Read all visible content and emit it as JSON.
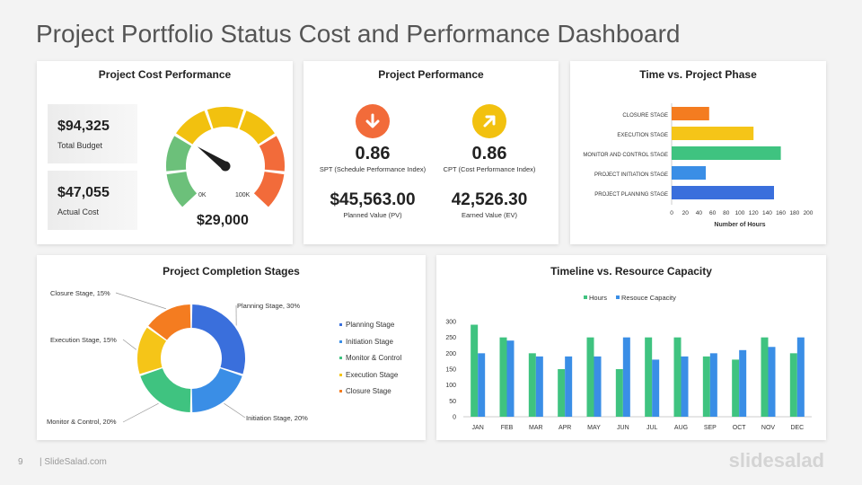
{
  "page": {
    "title": "Project Portfolio Status Cost and Performance Dashboard",
    "page_number": "9",
    "footer": "| SlideSalad.com",
    "brand": "slidesalad"
  },
  "cost_performance": {
    "title": "Project Cost Performance",
    "total_budget_value": "$94,325",
    "total_budget_label": "Total  Budget",
    "actual_cost_value": "$47,055",
    "actual_cost_label": "Actual Cost",
    "gauge_value": "$29,000",
    "gauge_min_label": "0K",
    "gauge_max_label": "100K",
    "gauge_level": 0.29,
    "gauge_colors": [
      "#6cc07a",
      "#6cc07a",
      "#f2c10f",
      "#f2c10f",
      "#f2c10f",
      "#f26b3a",
      "#f26b3a"
    ]
  },
  "project_performance": {
    "title": "Project Performance",
    "spi": {
      "value": "0.86",
      "label": "SPT (Schedule Performance Index)",
      "money": "$45,563.00",
      "money_label": "Planned Value (PV)",
      "icon": "arrow-down-icon",
      "color": "#f26b3a"
    },
    "cpi": {
      "value": "0.86",
      "label": "CPT (Cost Performance Index)",
      "money": "42,526.30",
      "money_label": "Earned Value (EV)",
      "icon": "arrow-up-right-icon",
      "color": "#f2c10f"
    }
  },
  "chart_data": [
    {
      "id": "time_vs_phase",
      "type": "bar",
      "orientation": "horizontal",
      "title": "Time vs. Project Phase",
      "xlabel": "Number of Hours",
      "xlim": [
        0,
        200
      ],
      "xticks": [
        0,
        20,
        40,
        60,
        80,
        100,
        120,
        140,
        160,
        180,
        200
      ],
      "categories": [
        "CLOSURE STAGE",
        "EXECUTION STAGE",
        "MONITOR AND CONTROL STAGE",
        "PROJECT INITIATION STAGE",
        "PROJECT PLANNING STAGE"
      ],
      "values": [
        55,
        120,
        160,
        50,
        150
      ],
      "colors": [
        "#f47c20",
        "#f5c518",
        "#3fc380",
        "#3a8ee6",
        "#3a6fdc"
      ]
    },
    {
      "id": "completion_stages",
      "type": "pie",
      "donut": true,
      "title": "Project Completion  Stages",
      "categories": [
        "Planning Stage",
        "Initiation Stage",
        "Monitor & Control",
        "Execution Stage",
        "Closure Stage"
      ],
      "values": [
        30,
        20,
        20,
        15,
        15
      ],
      "data_labels": [
        "Planning Stage, 30%",
        "Initiation Stage, 20%",
        "Monitor & Control, 20%",
        "Execution Stage, 15%",
        "Closure Stage, 15%"
      ],
      "colors": [
        "#3a6fdc",
        "#3a8ee6",
        "#3fc380",
        "#f5c518",
        "#f47c20"
      ],
      "legend_position": "right"
    },
    {
      "id": "timeline_capacity",
      "type": "bar",
      "title": "Timeline  vs. Resource Capacity",
      "categories": [
        "JAN",
        "FEB",
        "MAR",
        "APR",
        "MAY",
        "JUN",
        "JUL",
        "AUG",
        "SEP",
        "OCT",
        "NOV",
        "DEC"
      ],
      "series": [
        {
          "name": "Hours",
          "values": [
            290,
            250,
            200,
            150,
            250,
            150,
            250,
            250,
            190,
            180,
            250,
            200
          ],
          "color": "#3fc380"
        },
        {
          "name": "Resouce Capacity",
          "values": [
            200,
            240,
            190,
            190,
            190,
            250,
            180,
            190,
            200,
            210,
            220,
            250
          ],
          "color": "#3a8ee6"
        }
      ],
      "ylim": [
        0,
        300
      ],
      "yticks": [
        0,
        50,
        100,
        150,
        200,
        250,
        300
      ],
      "legend_position": "top"
    }
  ]
}
